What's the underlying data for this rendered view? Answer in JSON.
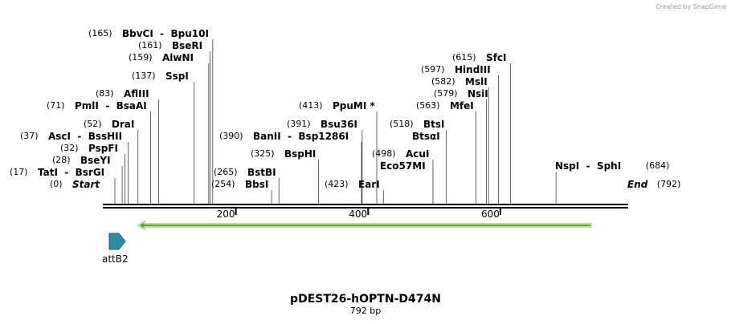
{
  "watermark": "Created by SnapGene",
  "map": {
    "title": "pDEST26-hOPTN-D474N",
    "length": "792 bp",
    "scale_ticks": [
      "200",
      "400",
      "600"
    ],
    "feature": "attB2",
    "sites": [
      {
        "position": "(165)",
        "label": "BbvCI  -  Bpu10I"
      },
      {
        "position": "(161)",
        "label": "BseRI"
      },
      {
        "position": "(159)",
        "label": "AlwNI"
      },
      {
        "position": "(137)",
        "label": "SspI"
      },
      {
        "position": "(83)",
        "label": "AflIII"
      },
      {
        "position": "(71)",
        "label": "PmlI  -  BsaAI"
      },
      {
        "position": "(52)",
        "label": "DraI"
      },
      {
        "position": "(37)",
        "label": "AscI  -  BssHII"
      },
      {
        "position": "(32)",
        "label": "PspFI"
      },
      {
        "position": "(28)",
        "label": "BseYI"
      },
      {
        "position": "(17)",
        "label": "TatI  -  BsrGI"
      },
      {
        "position": "(0)",
        "label": "Start"
      },
      {
        "position": "(413)",
        "label": "PpuMI *"
      },
      {
        "position": "(391)",
        "label": "Bsu36I"
      },
      {
        "position": "(390)",
        "label": "BanII  -  Bsp1286I"
      },
      {
        "position": "(325)",
        "label": "BspHI"
      },
      {
        "position": "(265)",
        "label": "BstBI"
      },
      {
        "position": "(254)",
        "label": "BbsI"
      },
      {
        "position": "(423)",
        "label": "EarI"
      },
      {
        "position": "(498)",
        "label": "AcuI"
      },
      {
        "label": "Eco57MI"
      },
      {
        "position": "(518)",
        "label": "BtsI"
      },
      {
        "label": "BtsαI"
      },
      {
        "position": "(563)",
        "label": "MfeI"
      },
      {
        "position": "(579)",
        "label": "NsiI"
      },
      {
        "position": "(582)",
        "label": "MslI"
      },
      {
        "position": "(597)",
        "label": "HindIII"
      },
      {
        "position": "(615)",
        "label": "SfcI"
      },
      {
        "position": "(684)",
        "label": "NspI  -  SphI"
      },
      {
        "position": "(792)",
        "label": "End"
      }
    ]
  }
}
